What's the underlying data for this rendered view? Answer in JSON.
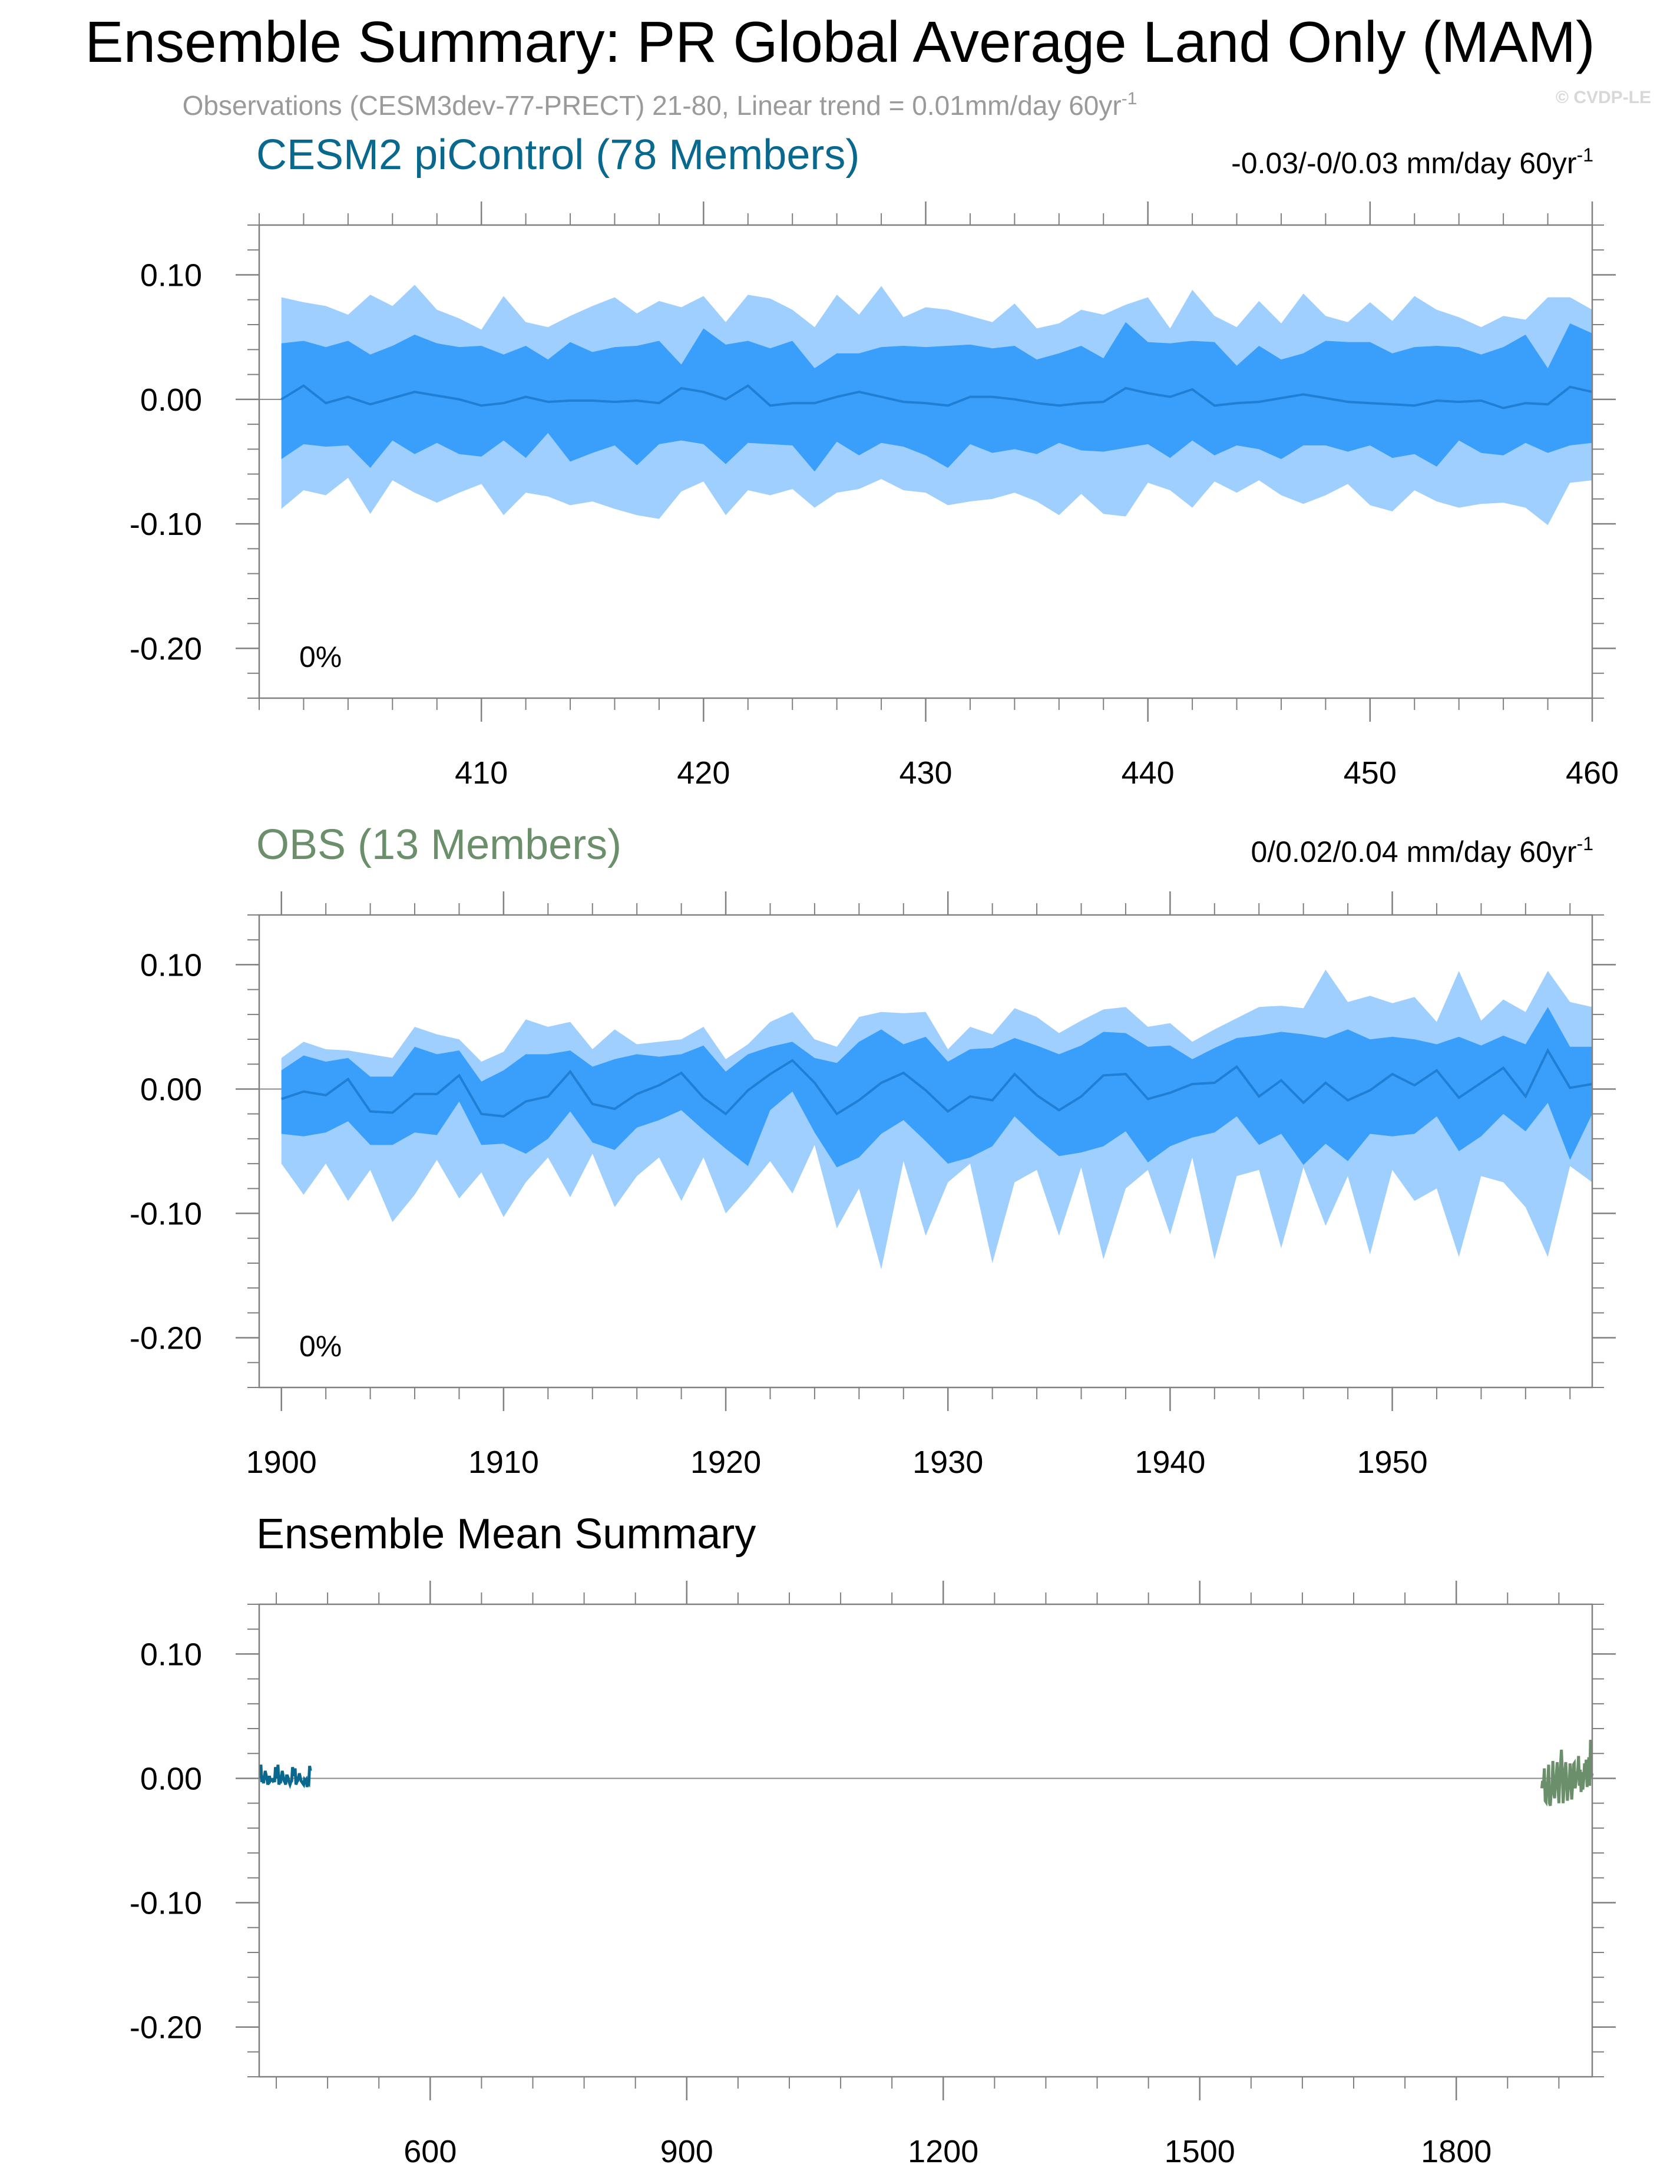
{
  "title": "Ensemble Summary: PR Global Average Land Only (MAM)",
  "subtitle": {
    "text": "Observations (CESM3dev-77-PRECT) 21-80, Linear trend = 0.01mm/day 60yr",
    "sup": "-1"
  },
  "watermark": "© CVDP-LE",
  "colors": {
    "band_outer": "#9fcfff",
    "band_inner": "#3a9ffa",
    "mean_line": "#1f7fd6",
    "axis": "#808080",
    "picontrol": "#08688e",
    "obs": "#6a8f6a",
    "subtitle": "#9a9a9a",
    "watermark": "#d8d8d8"
  },
  "chart_data": [
    {
      "type": "area",
      "name": "CESM2 piControl (78 Members)",
      "label": "CESM2 piControl (78 Members)",
      "trend_text": "-0.03/-0/0.03 mm/day 60yr",
      "trend_sup": "-1",
      "percent_label": "0%",
      "xlim": [
        400,
        460
      ],
      "ylim": [
        -0.24,
        0.14
      ],
      "x_ticks": [
        410,
        420,
        430,
        440,
        450,
        460
      ],
      "y_ticks": [
        -0.2,
        -0.1,
        0.0,
        0.1
      ],
      "y_tick_labels": [
        "-0.20",
        "-0.10",
        "0.00",
        "0.10"
      ],
      "x": [
        401,
        402,
        403,
        404,
        405,
        406,
        407,
        408,
        409,
        410,
        411,
        412,
        413,
        414,
        415,
        416,
        417,
        418,
        419,
        420,
        421,
        422,
        423,
        424,
        425,
        426,
        427,
        428,
        429,
        430,
        431,
        432,
        433,
        434,
        435,
        436,
        437,
        438,
        439,
        440,
        441,
        442,
        443,
        444,
        445,
        446,
        447,
        448,
        449,
        450,
        451,
        452,
        453,
        454,
        455,
        456,
        457,
        458,
        459,
        460
      ],
      "outer_upper": [
        0.082,
        0.078,
        0.075,
        0.068,
        0.084,
        0.075,
        0.092,
        0.072,
        0.065,
        0.056,
        0.083,
        0.062,
        0.058,
        0.067,
        0.075,
        0.082,
        0.069,
        0.079,
        0.074,
        0.083,
        0.062,
        0.084,
        0.081,
        0.072,
        0.058,
        0.084,
        0.068,
        0.091,
        0.066,
        0.074,
        0.072,
        0.067,
        0.062,
        0.077,
        0.057,
        0.061,
        0.072,
        0.068,
        0.076,
        0.082,
        0.057,
        0.088,
        0.067,
        0.058,
        0.079,
        0.061,
        0.085,
        0.067,
        0.062,
        0.078,
        0.063,
        0.083,
        0.072,
        0.066,
        0.058,
        0.067,
        0.064,
        0.082,
        0.082,
        0.072
      ],
      "inner_upper": [
        0.045,
        0.047,
        0.042,
        0.047,
        0.036,
        0.043,
        0.052,
        0.045,
        0.042,
        0.043,
        0.036,
        0.043,
        0.032,
        0.046,
        0.038,
        0.042,
        0.043,
        0.047,
        0.028,
        0.057,
        0.044,
        0.047,
        0.041,
        0.047,
        0.025,
        0.037,
        0.037,
        0.042,
        0.043,
        0.042,
        0.043,
        0.044,
        0.041,
        0.043,
        0.032,
        0.037,
        0.043,
        0.033,
        0.062,
        0.046,
        0.045,
        0.047,
        0.046,
        0.027,
        0.043,
        0.032,
        0.037,
        0.047,
        0.046,
        0.046,
        0.037,
        0.042,
        0.043,
        0.042,
        0.036,
        0.042,
        0.052,
        0.025,
        0.061,
        0.053
      ],
      "mean": [
        0.0,
        0.011,
        -0.003,
        0.002,
        -0.004,
        0.001,
        0.006,
        0.003,
        0.0,
        -0.005,
        -0.003,
        0.002,
        -0.002,
        -0.001,
        -0.001,
        -0.002,
        -0.001,
        -0.003,
        0.009,
        0.006,
        0.0,
        0.011,
        -0.005,
        -0.003,
        -0.003,
        0.002,
        0.006,
        0.002,
        -0.002,
        -0.003,
        -0.005,
        0.002,
        0.002,
        0.0,
        -0.003,
        -0.005,
        -0.003,
        -0.002,
        0.009,
        0.005,
        0.002,
        0.008,
        -0.005,
        -0.003,
        -0.002,
        0.001,
        0.004,
        0.001,
        -0.002,
        -0.003,
        -0.004,
        -0.005,
        -0.001,
        -0.002,
        -0.001,
        -0.007,
        -0.003,
        -0.004,
        0.01,
        0.006
      ],
      "inner_lower": [
        -0.048,
        -0.036,
        -0.038,
        -0.037,
        -0.055,
        -0.033,
        -0.044,
        -0.035,
        -0.044,
        -0.046,
        -0.033,
        -0.047,
        -0.027,
        -0.05,
        -0.043,
        -0.037,
        -0.053,
        -0.036,
        -0.033,
        -0.036,
        -0.052,
        -0.035,
        -0.036,
        -0.037,
        -0.058,
        -0.034,
        -0.045,
        -0.035,
        -0.038,
        -0.045,
        -0.055,
        -0.036,
        -0.043,
        -0.04,
        -0.044,
        -0.035,
        -0.041,
        -0.042,
        -0.039,
        -0.036,
        -0.047,
        -0.033,
        -0.045,
        -0.037,
        -0.04,
        -0.048,
        -0.037,
        -0.037,
        -0.042,
        -0.037,
        -0.047,
        -0.044,
        -0.054,
        -0.033,
        -0.043,
        -0.045,
        -0.035,
        -0.043,
        -0.037,
        -0.035
      ],
      "outer_lower": [
        -0.088,
        -0.073,
        -0.077,
        -0.063,
        -0.092,
        -0.065,
        -0.075,
        -0.083,
        -0.075,
        -0.068,
        -0.093,
        -0.075,
        -0.078,
        -0.085,
        -0.082,
        -0.088,
        -0.093,
        -0.096,
        -0.074,
        -0.066,
        -0.093,
        -0.073,
        -0.077,
        -0.072,
        -0.087,
        -0.075,
        -0.072,
        -0.064,
        -0.073,
        -0.075,
        -0.085,
        -0.082,
        -0.08,
        -0.075,
        -0.082,
        -0.093,
        -0.076,
        -0.092,
        -0.094,
        -0.067,
        -0.073,
        -0.087,
        -0.066,
        -0.075,
        -0.065,
        -0.077,
        -0.084,
        -0.077,
        -0.068,
        -0.085,
        -0.09,
        -0.073,
        -0.082,
        -0.087,
        -0.084,
        -0.083,
        -0.087,
        -0.101,
        -0.067,
        -0.065
      ]
    },
    {
      "type": "area",
      "name": "OBS (13 Members)",
      "label": "OBS (13 Members)",
      "trend_text": "0/0.02/0.04 mm/day 60yr",
      "trend_sup": "-1",
      "percent_label": "0%",
      "xlim": [
        1899,
        1959
      ],
      "ylim": [
        -0.24,
        0.14
      ],
      "x_ticks": [
        1900,
        1910,
        1920,
        1930,
        1940,
        1950
      ],
      "y_ticks": [
        -0.2,
        -0.1,
        0.0,
        0.1
      ],
      "y_tick_labels": [
        "-0.20",
        "-0.10",
        "0.00",
        "0.10"
      ],
      "x": [
        1900,
        1901,
        1902,
        1903,
        1904,
        1905,
        1906,
        1907,
        1908,
        1909,
        1910,
        1911,
        1912,
        1913,
        1914,
        1915,
        1916,
        1917,
        1918,
        1919,
        1920,
        1921,
        1922,
        1923,
        1924,
        1925,
        1926,
        1927,
        1928,
        1929,
        1930,
        1931,
        1932,
        1933,
        1934,
        1935,
        1936,
        1937,
        1938,
        1939,
        1940,
        1941,
        1942,
        1943,
        1944,
        1945,
        1946,
        1947,
        1948,
        1949,
        1950,
        1951,
        1952,
        1953,
        1954,
        1955,
        1956,
        1957,
        1958,
        1959
      ],
      "outer_upper": [
        0.025,
        0.038,
        0.032,
        0.031,
        0.028,
        0.025,
        0.05,
        0.044,
        0.04,
        0.022,
        0.03,
        0.056,
        0.05,
        0.054,
        0.032,
        0.048,
        0.036,
        0.038,
        0.04,
        0.05,
        0.024,
        0.036,
        0.054,
        0.062,
        0.04,
        0.034,
        0.058,
        0.062,
        0.061,
        0.062,
        0.032,
        0.05,
        0.044,
        0.065,
        0.058,
        0.045,
        0.055,
        0.064,
        0.066,
        0.05,
        0.053,
        0.038,
        0.048,
        0.057,
        0.066,
        0.067,
        0.065,
        0.096,
        0.07,
        0.075,
        0.069,
        0.074,
        0.054,
        0.095,
        0.055,
        0.072,
        0.062,
        0.095,
        0.07,
        0.066
      ],
      "inner_upper": [
        0.015,
        0.027,
        0.022,
        0.025,
        0.01,
        0.01,
        0.034,
        0.028,
        0.031,
        0.006,
        0.015,
        0.028,
        0.028,
        0.031,
        0.018,
        0.024,
        0.028,
        0.026,
        0.028,
        0.035,
        0.014,
        0.028,
        0.034,
        0.038,
        0.025,
        0.021,
        0.038,
        0.048,
        0.036,
        0.042,
        0.022,
        0.032,
        0.033,
        0.041,
        0.035,
        0.028,
        0.035,
        0.046,
        0.045,
        0.034,
        0.035,
        0.024,
        0.033,
        0.041,
        0.043,
        0.046,
        0.044,
        0.041,
        0.048,
        0.04,
        0.042,
        0.04,
        0.036,
        0.042,
        0.035,
        0.043,
        0.036,
        0.066,
        0.034,
        0.034
      ],
      "mean": [
        -0.008,
        -0.002,
        -0.005,
        0.008,
        -0.018,
        -0.019,
        -0.004,
        -0.004,
        0.011,
        -0.02,
        -0.022,
        -0.01,
        -0.006,
        0.014,
        -0.012,
        -0.016,
        -0.004,
        0.003,
        0.013,
        -0.007,
        -0.02,
        -0.001,
        0.012,
        0.023,
        0.005,
        -0.02,
        -0.009,
        0.005,
        0.013,
        -0.001,
        -0.018,
        -0.006,
        -0.009,
        0.012,
        -0.005,
        -0.017,
        -0.006,
        0.011,
        0.012,
        -0.008,
        -0.003,
        0.004,
        0.005,
        0.018,
        -0.006,
        0.007,
        -0.011,
        0.005,
        -0.009,
        -0.001,
        0.012,
        0.003,
        0.015,
        -0.007,
        0.005,
        0.017,
        -0.006,
        0.031,
        0.001,
        0.004
      ],
      "inner_lower": [
        -0.036,
        -0.038,
        -0.035,
        -0.026,
        -0.045,
        -0.045,
        -0.035,
        -0.037,
        -0.01,
        -0.045,
        -0.044,
        -0.052,
        -0.04,
        -0.018,
        -0.043,
        -0.049,
        -0.031,
        -0.025,
        -0.017,
        -0.033,
        -0.048,
        -0.062,
        -0.017,
        -0.002,
        -0.035,
        -0.063,
        -0.055,
        -0.036,
        -0.025,
        -0.042,
        -0.06,
        -0.055,
        -0.046,
        -0.022,
        -0.039,
        -0.054,
        -0.051,
        -0.046,
        -0.034,
        -0.059,
        -0.046,
        -0.039,
        -0.035,
        -0.022,
        -0.045,
        -0.036,
        -0.061,
        -0.044,
        -0.058,
        -0.036,
        -0.038,
        -0.036,
        -0.022,
        -0.05,
        -0.038,
        -0.02,
        -0.034,
        -0.011,
        -0.057,
        -0.02
      ],
      "outer_lower": [
        -0.06,
        -0.085,
        -0.06,
        -0.09,
        -0.065,
        -0.107,
        -0.085,
        -0.057,
        -0.088,
        -0.067,
        -0.103,
        -0.075,
        -0.055,
        -0.087,
        -0.052,
        -0.095,
        -0.07,
        -0.055,
        -0.09,
        -0.055,
        -0.1,
        -0.08,
        -0.058,
        -0.084,
        -0.045,
        -0.112,
        -0.08,
        -0.145,
        -0.058,
        -0.118,
        -0.075,
        -0.06,
        -0.14,
        -0.075,
        -0.065,
        -0.118,
        -0.063,
        -0.137,
        -0.08,
        -0.065,
        -0.117,
        -0.055,
        -0.137,
        -0.07,
        -0.065,
        -0.128,
        -0.063,
        -0.11,
        -0.07,
        -0.133,
        -0.065,
        -0.09,
        -0.08,
        -0.135,
        -0.07,
        -0.075,
        -0.095,
        -0.135,
        -0.062,
        -0.075
      ]
    },
    {
      "type": "line",
      "name": "Ensemble Mean Summary",
      "label": "Ensemble Mean Summary",
      "xlim": [
        400,
        1959
      ],
      "ylim": [
        -0.24,
        0.14
      ],
      "x_ticks": [
        600,
        900,
        1200,
        1500,
        1800
      ],
      "y_ticks": [
        -0.2,
        -0.1,
        0.0,
        0.1
      ],
      "y_tick_labels": [
        "-0.20",
        "-0.10",
        "0.00",
        "0.10"
      ],
      "series": [
        {
          "name": "CESM2 piControl",
          "color": "#08688e",
          "x": [
            401,
            402,
            403,
            404,
            405,
            406,
            407,
            408,
            409,
            410,
            411,
            412,
            413,
            414,
            415,
            416,
            417,
            418,
            419,
            420,
            421,
            422,
            423,
            424,
            425,
            426,
            427,
            428,
            429,
            430,
            431,
            432,
            433,
            434,
            435,
            436,
            437,
            438,
            439,
            440,
            441,
            442,
            443,
            444,
            445,
            446,
            447,
            448,
            449,
            450,
            451,
            452,
            453,
            454,
            455,
            456,
            457,
            458,
            459,
            460
          ],
          "values": [
            0.0,
            0.011,
            -0.003,
            0.002,
            -0.004,
            0.001,
            0.006,
            0.003,
            0.0,
            -0.005,
            -0.003,
            0.002,
            -0.002,
            -0.001,
            -0.001,
            -0.002,
            -0.001,
            -0.003,
            0.009,
            0.006,
            0.0,
            0.011,
            -0.005,
            -0.003,
            -0.003,
            0.002,
            0.006,
            0.002,
            -0.002,
            -0.003,
            -0.005,
            0.002,
            0.002,
            0.0,
            -0.003,
            -0.005,
            -0.003,
            -0.002,
            0.009,
            0.005,
            0.002,
            0.008,
            -0.005,
            -0.003,
            -0.002,
            0.001,
            0.004,
            0.001,
            -0.002,
            -0.003,
            -0.004,
            -0.005,
            -0.001,
            -0.002,
            -0.001,
            -0.007,
            -0.003,
            -0.004,
            0.01,
            0.006
          ]
        },
        {
          "name": "OBS",
          "color": "#6a8f6a",
          "x": [
            1900,
            1901,
            1902,
            1903,
            1904,
            1905,
            1906,
            1907,
            1908,
            1909,
            1910,
            1911,
            1912,
            1913,
            1914,
            1915,
            1916,
            1917,
            1918,
            1919,
            1920,
            1921,
            1922,
            1923,
            1924,
            1925,
            1926,
            1927,
            1928,
            1929,
            1930,
            1931,
            1932,
            1933,
            1934,
            1935,
            1936,
            1937,
            1938,
            1939,
            1940,
            1941,
            1942,
            1943,
            1944,
            1945,
            1946,
            1947,
            1948,
            1949,
            1950,
            1951,
            1952,
            1953,
            1954,
            1955,
            1956,
            1957,
            1958,
            1959
          ],
          "values": [
            -0.008,
            -0.002,
            -0.005,
            0.008,
            -0.018,
            -0.019,
            -0.004,
            -0.004,
            0.011,
            -0.02,
            -0.022,
            -0.01,
            -0.006,
            0.014,
            -0.012,
            -0.016,
            -0.004,
            0.003,
            0.013,
            -0.007,
            -0.02,
            -0.001,
            0.012,
            0.023,
            0.005,
            -0.02,
            -0.009,
            0.005,
            0.013,
            -0.001,
            -0.018,
            -0.006,
            -0.009,
            0.012,
            -0.005,
            -0.017,
            -0.006,
            0.011,
            0.012,
            -0.008,
            -0.003,
            0.004,
            0.005,
            0.018,
            -0.006,
            0.007,
            -0.011,
            0.005,
            -0.009,
            -0.001,
            0.012,
            0.003,
            0.015,
            -0.007,
            0.005,
            0.017,
            -0.006,
            0.031,
            0.001,
            0.004
          ]
        }
      ]
    }
  ]
}
